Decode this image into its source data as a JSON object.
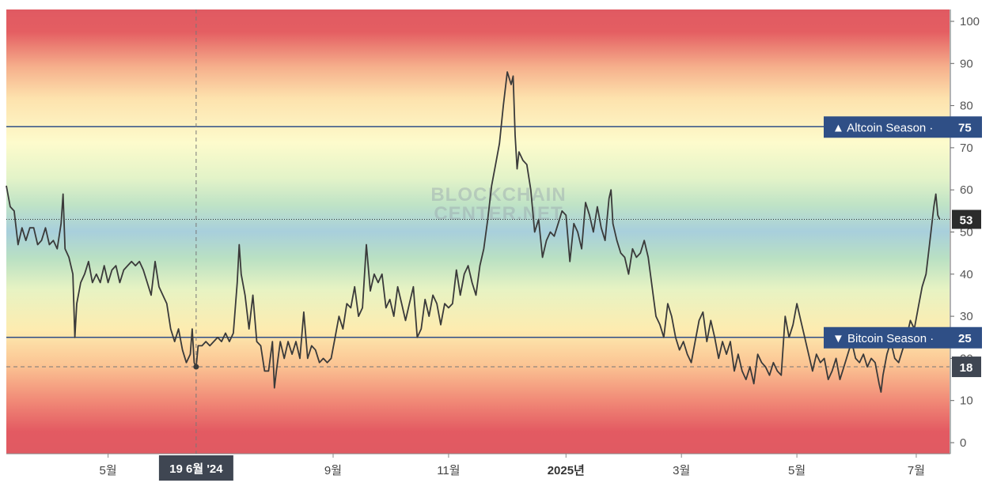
{
  "chart_data": {
    "type": "line",
    "watermark": [
      "BLOCKCHAIN",
      "CENTER.NET"
    ],
    "ylim": [
      -3,
      103
    ],
    "yticks": [
      0,
      10,
      20,
      30,
      40,
      50,
      60,
      70,
      80,
      90,
      100
    ],
    "xlim": [
      0,
      482
    ],
    "xticks": [
      {
        "x": 52,
        "label": "5월",
        "bold": false
      },
      {
        "x": 167,
        "label": "9월",
        "bold": false
      },
      {
        "x": 226,
        "label": "11월",
        "bold": false
      },
      {
        "x": 286,
        "label": "2025년",
        "bold": true
      },
      {
        "x": 345,
        "label": "3월",
        "bold": false
      },
      {
        "x": 404,
        "label": "5월",
        "bold": false
      },
      {
        "x": 465,
        "label": "7월",
        "bold": false
      }
    ],
    "thresholds": [
      {
        "value": 75,
        "label": "▲ Altcoin Season",
        "value_label": "75",
        "color": "#2f4f86"
      },
      {
        "value": 25,
        "label": "▼ Bitcoin Season",
        "value_label": "25",
        "color": "#2f4f86"
      }
    ],
    "current": {
      "value": 53,
      "label": "53"
    },
    "crosshair": {
      "x": 97,
      "value": 18,
      "x_label": "19 6월 '24",
      "y_label": "18"
    },
    "series": [
      {
        "color": "#3a3a3a",
        "points": [
          [
            0,
            61
          ],
          [
            2,
            56
          ],
          [
            4,
            55
          ],
          [
            6,
            47
          ],
          [
            8,
            51
          ],
          [
            10,
            48
          ],
          [
            12,
            51
          ],
          [
            14,
            51
          ],
          [
            16,
            47
          ],
          [
            18,
            48
          ],
          [
            20,
            51
          ],
          [
            22,
            47
          ],
          [
            24,
            48
          ],
          [
            26,
            46
          ],
          [
            28,
            52
          ],
          [
            29,
            59
          ],
          [
            30,
            46
          ],
          [
            32,
            44
          ],
          [
            34,
            40
          ],
          [
            35,
            25
          ],
          [
            36,
            33
          ],
          [
            38,
            38
          ],
          [
            40,
            40
          ],
          [
            42,
            43
          ],
          [
            44,
            38
          ],
          [
            46,
            40
          ],
          [
            48,
            38
          ],
          [
            50,
            42
          ],
          [
            52,
            38
          ],
          [
            54,
            41
          ],
          [
            56,
            42
          ],
          [
            58,
            38
          ],
          [
            60,
            41
          ],
          [
            62,
            42
          ],
          [
            64,
            43
          ],
          [
            66,
            42
          ],
          [
            68,
            43
          ],
          [
            70,
            41
          ],
          [
            72,
            38
          ],
          [
            74,
            35
          ],
          [
            76,
            43
          ],
          [
            78,
            37
          ],
          [
            80,
            35
          ],
          [
            82,
            33
          ],
          [
            84,
            27
          ],
          [
            86,
            24
          ],
          [
            88,
            27
          ],
          [
            90,
            22
          ],
          [
            92,
            19
          ],
          [
            94,
            21
          ],
          [
            95,
            27
          ],
          [
            96,
            19
          ],
          [
            97,
            18
          ],
          [
            98,
            23
          ],
          [
            100,
            23
          ],
          [
            102,
            24
          ],
          [
            104,
            23
          ],
          [
            106,
            24
          ],
          [
            108,
            25
          ],
          [
            110,
            24
          ],
          [
            112,
            26
          ],
          [
            114,
            24
          ],
          [
            116,
            26
          ],
          [
            118,
            38
          ],
          [
            119,
            47
          ],
          [
            120,
            40
          ],
          [
            122,
            35
          ],
          [
            124,
            27
          ],
          [
            126,
            35
          ],
          [
            128,
            24
          ],
          [
            130,
            23
          ],
          [
            132,
            17
          ],
          [
            134,
            17
          ],
          [
            136,
            24
          ],
          [
            137,
            13
          ],
          [
            138,
            17
          ],
          [
            140,
            24
          ],
          [
            142,
            20
          ],
          [
            144,
            24
          ],
          [
            146,
            21
          ],
          [
            148,
            24
          ],
          [
            150,
            20
          ],
          [
            152,
            31
          ],
          [
            154,
            20
          ],
          [
            156,
            23
          ],
          [
            158,
            22
          ],
          [
            160,
            19
          ],
          [
            162,
            20
          ],
          [
            164,
            19
          ],
          [
            166,
            20
          ],
          [
            168,
            25
          ],
          [
            170,
            30
          ],
          [
            172,
            27
          ],
          [
            174,
            33
          ],
          [
            176,
            32
          ],
          [
            178,
            37
          ],
          [
            180,
            30
          ],
          [
            182,
            32
          ],
          [
            184,
            47
          ],
          [
            186,
            36
          ],
          [
            188,
            40
          ],
          [
            190,
            38
          ],
          [
            192,
            40
          ],
          [
            194,
            32
          ],
          [
            196,
            34
          ],
          [
            198,
            30
          ],
          [
            200,
            37
          ],
          [
            202,
            33
          ],
          [
            204,
            29
          ],
          [
            206,
            33
          ],
          [
            208,
            37
          ],
          [
            210,
            25
          ],
          [
            212,
            27
          ],
          [
            214,
            34
          ],
          [
            216,
            30
          ],
          [
            218,
            35
          ],
          [
            220,
            33
          ],
          [
            222,
            28
          ],
          [
            224,
            33
          ],
          [
            226,
            32
          ],
          [
            228,
            33
          ],
          [
            230,
            41
          ],
          [
            232,
            35
          ],
          [
            234,
            40
          ],
          [
            236,
            42
          ],
          [
            238,
            38
          ],
          [
            240,
            35
          ],
          [
            242,
            42
          ],
          [
            244,
            46
          ],
          [
            246,
            53
          ],
          [
            248,
            61
          ],
          [
            250,
            66
          ],
          [
            252,
            71
          ],
          [
            254,
            80
          ],
          [
            256,
            88
          ],
          [
            258,
            85
          ],
          [
            259,
            87
          ],
          [
            260,
            73
          ],
          [
            261,
            65
          ],
          [
            262,
            69
          ],
          [
            264,
            67
          ],
          [
            266,
            66
          ],
          [
            268,
            60
          ],
          [
            270,
            50
          ],
          [
            272,
            53
          ],
          [
            274,
            44
          ],
          [
            276,
            48
          ],
          [
            278,
            50
          ],
          [
            280,
            49
          ],
          [
            282,
            52
          ],
          [
            284,
            55
          ],
          [
            286,
            54
          ],
          [
            288,
            43
          ],
          [
            290,
            52
          ],
          [
            292,
            50
          ],
          [
            294,
            46
          ],
          [
            296,
            57
          ],
          [
            298,
            54
          ],
          [
            300,
            50
          ],
          [
            302,
            56
          ],
          [
            304,
            51
          ],
          [
            306,
            48
          ],
          [
            308,
            58
          ],
          [
            309,
            60
          ],
          [
            310,
            52
          ],
          [
            312,
            48
          ],
          [
            314,
            45
          ],
          [
            316,
            44
          ],
          [
            318,
            40
          ],
          [
            320,
            46
          ],
          [
            322,
            44
          ],
          [
            324,
            45
          ],
          [
            326,
            48
          ],
          [
            328,
            44
          ],
          [
            330,
            37
          ],
          [
            332,
            30
          ],
          [
            334,
            28
          ],
          [
            336,
            25
          ],
          [
            338,
            33
          ],
          [
            340,
            30
          ],
          [
            342,
            25
          ],
          [
            344,
            22
          ],
          [
            346,
            24
          ],
          [
            348,
            21
          ],
          [
            350,
            19
          ],
          [
            352,
            24
          ],
          [
            354,
            29
          ],
          [
            356,
            31
          ],
          [
            358,
            24
          ],
          [
            360,
            29
          ],
          [
            362,
            25
          ],
          [
            364,
            20
          ],
          [
            366,
            24
          ],
          [
            368,
            21
          ],
          [
            370,
            24
          ],
          [
            372,
            17
          ],
          [
            374,
            21
          ],
          [
            376,
            17
          ],
          [
            378,
            15
          ],
          [
            380,
            18
          ],
          [
            382,
            14
          ],
          [
            384,
            21
          ],
          [
            386,
            19
          ],
          [
            388,
            18
          ],
          [
            390,
            16
          ],
          [
            392,
            19
          ],
          [
            394,
            17
          ],
          [
            396,
            16
          ],
          [
            398,
            30
          ],
          [
            400,
            25
          ],
          [
            402,
            28
          ],
          [
            404,
            33
          ],
          [
            406,
            29
          ],
          [
            408,
            25
          ],
          [
            410,
            21
          ],
          [
            412,
            17
          ],
          [
            414,
            21
          ],
          [
            416,
            19
          ],
          [
            418,
            20
          ],
          [
            420,
            15
          ],
          [
            422,
            17
          ],
          [
            424,
            20
          ],
          [
            426,
            15
          ],
          [
            428,
            18
          ],
          [
            430,
            21
          ],
          [
            432,
            24
          ],
          [
            434,
            20
          ],
          [
            436,
            19
          ],
          [
            438,
            21
          ],
          [
            440,
            18
          ],
          [
            442,
            20
          ],
          [
            444,
            19
          ],
          [
            446,
            14
          ],
          [
            447,
            12
          ],
          [
            448,
            16
          ],
          [
            450,
            21
          ],
          [
            452,
            24
          ],
          [
            454,
            20
          ],
          [
            456,
            19
          ],
          [
            458,
            22
          ],
          [
            460,
            25
          ],
          [
            462,
            29
          ],
          [
            464,
            27
          ],
          [
            466,
            32
          ],
          [
            468,
            37
          ],
          [
            470,
            40
          ],
          [
            472,
            48
          ],
          [
            474,
            56
          ],
          [
            475,
            59
          ],
          [
            476,
            54
          ],
          [
            477,
            53
          ]
        ]
      }
    ]
  }
}
